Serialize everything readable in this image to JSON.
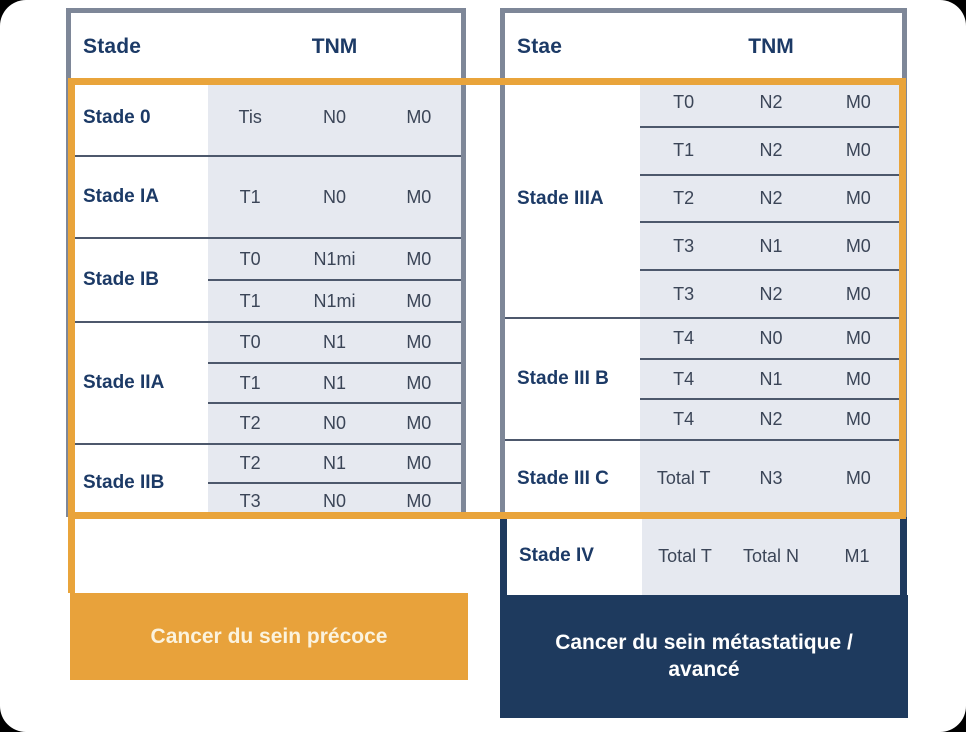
{
  "colors": {
    "accent_orange": "#E9A43B",
    "navy": "#1E3A5E",
    "table_border_gray": "#7E8798",
    "divider": "#4D586C",
    "tnm_cell_bg": "#E6E9F0",
    "heading_text": "#1C3A66",
    "value_text": "#3B4557",
    "early_footer_text": "#FBF3DE"
  },
  "left_table": {
    "header": {
      "stage": "Stade",
      "tnm": "TNM"
    },
    "groups": [
      {
        "stage": "Stade 0",
        "rows": [
          [
            "Tis",
            "N0",
            "M0"
          ]
        ]
      },
      {
        "stage": "Stade IA",
        "rows": [
          [
            "T1",
            "N0",
            "M0"
          ]
        ]
      },
      {
        "stage": "Stade IB",
        "rows": [
          [
            "T0",
            "N1mi",
            "M0"
          ],
          [
            "T1",
            "N1mi",
            "M0"
          ]
        ]
      },
      {
        "stage": "Stade IIA",
        "rows": [
          [
            "T0",
            "N1",
            "M0"
          ],
          [
            "T1",
            "N1",
            "M0"
          ],
          [
            "T2",
            "N0",
            "M0"
          ]
        ]
      },
      {
        "stage": "Stade IIB",
        "rows": [
          [
            "T2",
            "N1",
            "M0"
          ],
          [
            "T3",
            "N0",
            "M0"
          ]
        ]
      }
    ],
    "footer_label": "Cancer du sein précoce"
  },
  "right_table": {
    "header": {
      "stage": "Stae",
      "tnm": "TNM"
    },
    "groups": [
      {
        "stage": "Stade IIIA",
        "rows": [
          [
            "T0",
            "N2",
            "M0"
          ],
          [
            "T1",
            "N2",
            "M0"
          ],
          [
            "T2",
            "N2",
            "M0"
          ],
          [
            "T3",
            "N1",
            "M0"
          ],
          [
            "T3",
            "N2",
            "M0"
          ]
        ]
      },
      {
        "stage": "Stade III B",
        "rows": [
          [
            "T4",
            "N0",
            "M0"
          ],
          [
            "T4",
            "N1",
            "M0"
          ],
          [
            "T4",
            "N2",
            "M0"
          ]
        ]
      },
      {
        "stage": "Stade III C",
        "rows": [
          [
            "Total T",
            "N3",
            "M0"
          ]
        ]
      }
    ],
    "stage_iv": {
      "stage": "Stade IV",
      "rows": [
        [
          "Total T",
          "Total N",
          "M1"
        ]
      ]
    },
    "footer_label": "Cancer du sein métastatique / avancé"
  }
}
